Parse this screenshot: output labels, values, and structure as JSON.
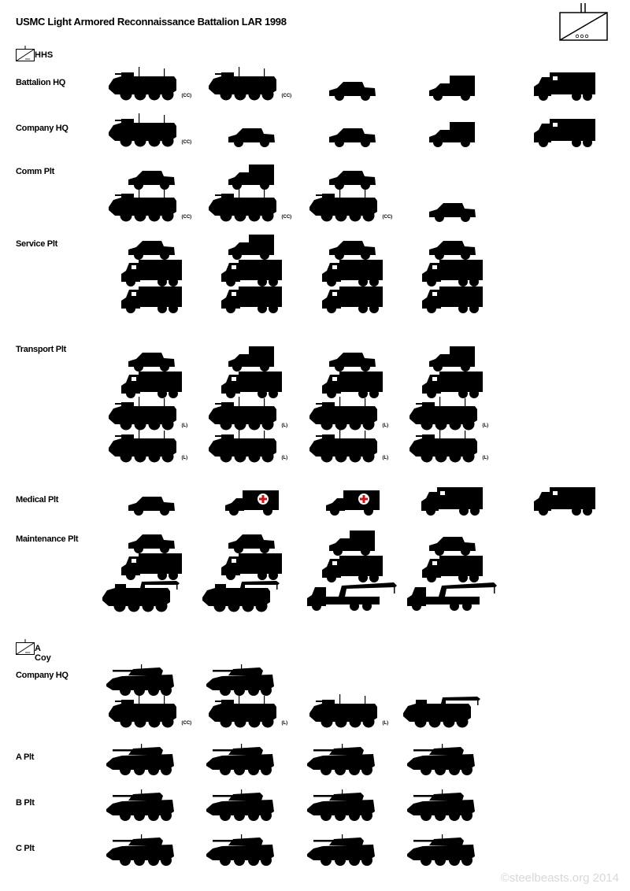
{
  "title": "USMC Light Armored Reconnaissance Battalion LAR 1998",
  "watermark": "©steelbeasts.org 2014",
  "colors": {
    "silhouette": "#000000",
    "red_cross": "#d01010",
    "watermark": "#d8d8d8"
  },
  "units": [
    {
      "label": "HHS",
      "icon": "recon-company-symbol"
    },
    {
      "label": "A Coy",
      "icon": "recon-company-symbol"
    }
  ],
  "rows": [
    {
      "label": "Battalion HQ",
      "columns": [
        [
          {
            "type": "lav-c2",
            "tag": "(CC)"
          }
        ],
        [
          {
            "type": "lav-c2",
            "tag": "(CC)"
          }
        ],
        [
          {
            "type": "hmmwv"
          }
        ],
        [
          {
            "type": "hmmwv-shelter"
          }
        ],
        [
          {
            "type": "box-truck"
          }
        ]
      ]
    },
    {
      "label": "Company HQ",
      "columns": [
        [
          {
            "type": "lav-c2",
            "tag": "(CC)"
          }
        ],
        [
          {
            "type": "hmmwv"
          }
        ],
        [
          {
            "type": "hmmwv"
          }
        ],
        [
          {
            "type": "hmmwv-shelter"
          }
        ],
        [
          {
            "type": "box-truck"
          }
        ]
      ]
    },
    {
      "label": "Comm Plt",
      "columns": [
        [
          {
            "type": "hmmwv"
          },
          {
            "type": "lav-c2",
            "tag": "(CC)"
          }
        ],
        [
          {
            "type": "hmmwv-shelter"
          },
          {
            "type": "lav-c2",
            "tag": "(CC)"
          }
        ],
        [
          {
            "type": "hmmwv"
          },
          {
            "type": "lav-c2",
            "tag": "(CC)"
          }
        ],
        [
          {
            "type": "hmmwv"
          }
        ]
      ]
    },
    {
      "label": "Service Plt",
      "columns": [
        [
          {
            "type": "hmmwv"
          },
          {
            "type": "cargo-truck"
          },
          {
            "type": "cargo-truck"
          }
        ],
        [
          {
            "type": "hmmwv-shelter"
          },
          {
            "type": "cargo-truck"
          },
          {
            "type": "cargo-truck"
          }
        ],
        [
          {
            "type": "hmmwv"
          },
          {
            "type": "cargo-truck"
          },
          {
            "type": "cargo-truck"
          }
        ],
        [
          {
            "type": "hmmwv"
          },
          {
            "type": "cargo-truck"
          },
          {
            "type": "cargo-truck"
          }
        ]
      ]
    },
    {
      "label": "Transport Plt",
      "columns": [
        [
          {
            "type": "hmmwv"
          },
          {
            "type": "cargo-truck"
          },
          {
            "type": "lav-c2",
            "tag": "(L)"
          },
          {
            "type": "lav-c2",
            "tag": "(L)"
          }
        ],
        [
          {
            "type": "hmmwv-shelter"
          },
          {
            "type": "cargo-truck"
          },
          {
            "type": "lav-c2",
            "tag": "(L)"
          },
          {
            "type": "lav-c2",
            "tag": "(L)"
          }
        ],
        [
          {
            "type": "hmmwv"
          },
          {
            "type": "cargo-truck"
          },
          {
            "type": "lav-c2",
            "tag": "(L)"
          },
          {
            "type": "lav-c2",
            "tag": "(L)"
          }
        ],
        [
          {
            "type": "hmmwv-shelter"
          },
          {
            "type": "cargo-truck"
          },
          {
            "type": "lav-c2",
            "tag": "(L)"
          },
          {
            "type": "lav-c2",
            "tag": "(L)"
          }
        ]
      ]
    },
    {
      "label": "Medical Plt",
      "columns": [
        [
          {
            "type": "hmmwv"
          }
        ],
        [
          {
            "type": "ambulance"
          }
        ],
        [
          {
            "type": "ambulance"
          }
        ],
        [
          {
            "type": "box-truck"
          }
        ],
        [
          {
            "type": "box-truck"
          }
        ]
      ]
    },
    {
      "label": "Maintenance Plt",
      "columns": [
        [
          {
            "type": "hmmwv"
          },
          {
            "type": "cargo-truck"
          },
          {
            "type": "lav-r"
          }
        ],
        [
          {
            "type": "hmmwv"
          },
          {
            "type": "cargo-truck"
          },
          {
            "type": "lav-r"
          }
        ],
        [
          {
            "type": "hmmwv-shelter"
          },
          {
            "type": "cargo-truck"
          },
          {
            "type": "wrecker"
          }
        ],
        [
          {
            "type": "hmmwv"
          },
          {
            "type": "cargo-truck"
          },
          {
            "type": "wrecker"
          }
        ]
      ]
    },
    {
      "label": "Company HQ",
      "columns": [
        [
          {
            "type": "lav-25"
          },
          {
            "type": "lav-c2",
            "tag": "(CC)"
          }
        ],
        [
          {
            "type": "lav-25"
          },
          {
            "type": "lav-c2",
            "tag": "(L)"
          }
        ],
        [
          {
            "type": "lav-c2",
            "tag": "(L)"
          }
        ],
        [
          {
            "type": "lav-r"
          }
        ]
      ]
    },
    {
      "label": "A Plt",
      "columns": [
        [
          {
            "type": "lav-25"
          }
        ],
        [
          {
            "type": "lav-25"
          }
        ],
        [
          {
            "type": "lav-25"
          }
        ],
        [
          {
            "type": "lav-25"
          }
        ]
      ]
    },
    {
      "label": "B Plt",
      "columns": [
        [
          {
            "type": "lav-25"
          }
        ],
        [
          {
            "type": "lav-25"
          }
        ],
        [
          {
            "type": "lav-25"
          }
        ],
        [
          {
            "type": "lav-25"
          }
        ]
      ]
    },
    {
      "label": "C Plt",
      "columns": [
        [
          {
            "type": "lav-25"
          }
        ],
        [
          {
            "type": "lav-25"
          }
        ],
        [
          {
            "type": "lav-25"
          }
        ],
        [
          {
            "type": "lav-25"
          }
        ]
      ]
    }
  ]
}
